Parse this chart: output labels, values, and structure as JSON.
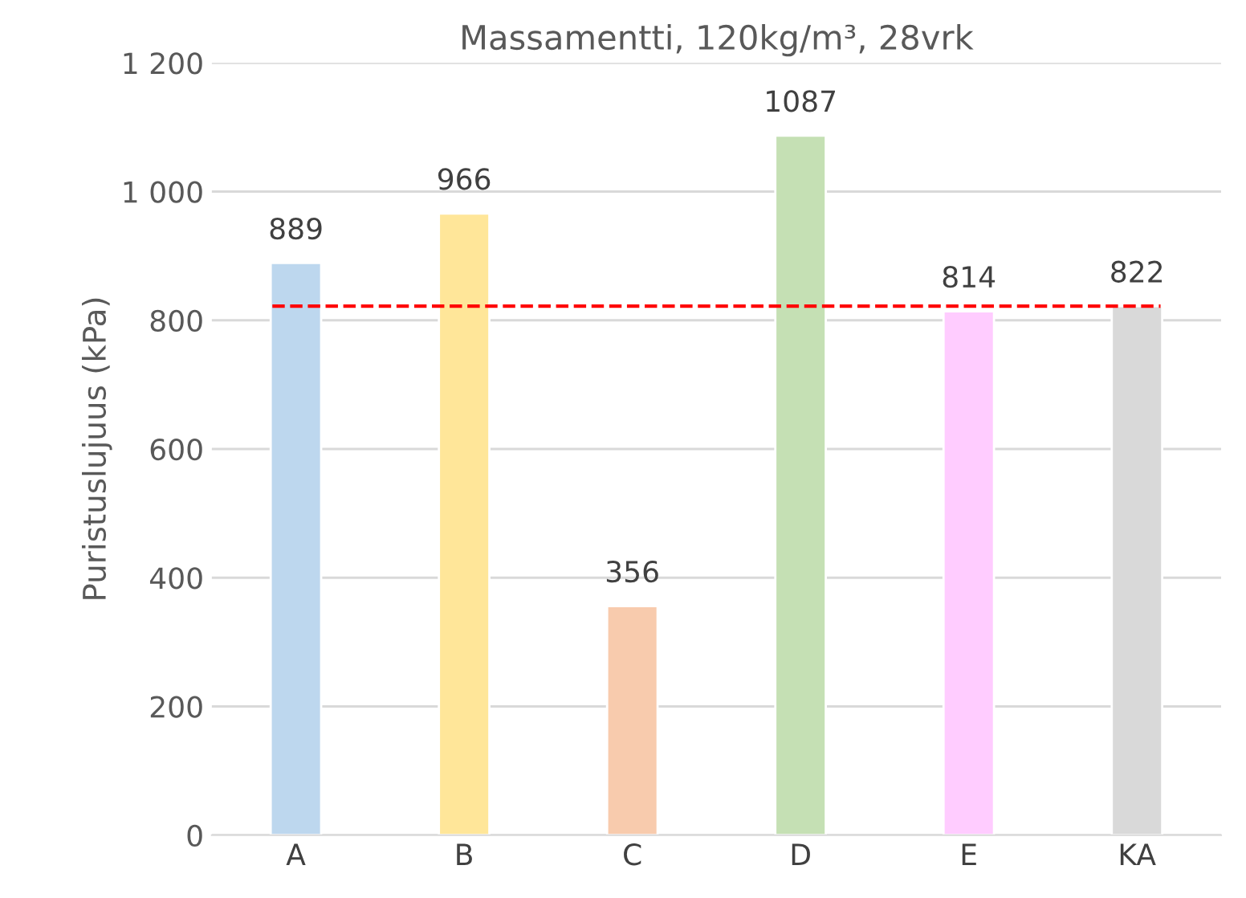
{
  "chart_data": {
    "type": "bar",
    "title": "Massamentti, 120kg/m³, 28vrk",
    "ylabel": "Puristuslujuus (kPa)",
    "categories": [
      "A",
      "B",
      "C",
      "D",
      "E",
      "KA"
    ],
    "values": [
      889,
      966,
      356,
      1087,
      814,
      822
    ],
    "colors": [
      "#bdd7ee",
      "#ffe699",
      "#f8cbad",
      "#c5e0b4",
      "#ffccff",
      "#d9d9d9"
    ],
    "data_labels": true,
    "ylim": [
      0,
      1200
    ],
    "yticks": [
      0,
      200,
      400,
      600,
      800,
      {
        "value": 1000,
        "label": "1 000"
      },
      {
        "value": 1200,
        "label": "1 200"
      }
    ],
    "grid": "y",
    "ref_lines": [
      {
        "axis": "y",
        "value": 822,
        "color": "#ff0000",
        "line_style": "dashed"
      }
    ]
  }
}
